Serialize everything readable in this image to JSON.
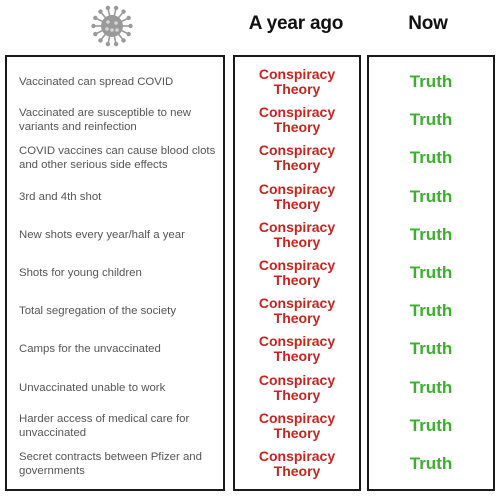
{
  "header": {
    "icon": "virus-icon",
    "col_ago": "A year ago",
    "col_now": "Now"
  },
  "rows": [
    {
      "statement": "Vaccinated can spread COVID",
      "ago": "Conspiracy Theory",
      "now": "Truth"
    },
    {
      "statement": "Vaccinated are susceptible to new variants and reinfection",
      "ago": "Conspiracy Theory",
      "now": "Truth"
    },
    {
      "statement": "COVID vaccines can cause blood clots and other serious side effects",
      "ago": "Conspiracy Theory",
      "now": "Truth"
    },
    {
      "statement": "3rd and 4th shot",
      "ago": "Conspiracy Theory",
      "now": "Truth"
    },
    {
      "statement": "New shots every year/half a year",
      "ago": "Conspiracy Theory",
      "now": "Truth"
    },
    {
      "statement": "Shots for young children",
      "ago": "Conspiracy Theory",
      "now": "Truth"
    },
    {
      "statement": "Total segregation of the society",
      "ago": "Conspiracy Theory",
      "now": "Truth"
    },
    {
      "statement": "Camps for the unvaccinated",
      "ago": "Conspiracy Theory",
      "now": "Truth"
    },
    {
      "statement": "Unvaccinated unable to work",
      "ago": "Conspiracy Theory",
      "now": "Truth"
    },
    {
      "statement": "Harder access of medical care for unvaccinated",
      "ago": "Conspiracy Theory",
      "now": "Truth"
    },
    {
      "statement": "Secret contracts between Pfizer and governments",
      "ago": "Conspiracy Theory",
      "now": "Truth"
    }
  ],
  "colors": {
    "conspiracy": "#c8241f",
    "truth": "#3ab02c",
    "statement": "#555555",
    "border": "#1a1a1a"
  }
}
